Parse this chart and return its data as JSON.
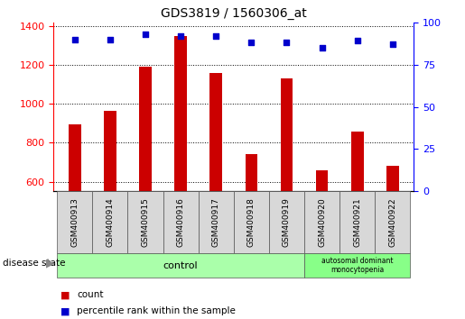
{
  "title": "GDS3819 / 1560306_at",
  "samples": [
    "GSM400913",
    "GSM400914",
    "GSM400915",
    "GSM400916",
    "GSM400917",
    "GSM400918",
    "GSM400919",
    "GSM400920",
    "GSM400921",
    "GSM400922"
  ],
  "counts": [
    893,
    963,
    1190,
    1350,
    1160,
    740,
    1130,
    660,
    860,
    680
  ],
  "percentile_ranks": [
    90,
    90,
    93,
    92,
    92,
    88,
    88,
    85,
    89,
    87
  ],
  "ylim_left": [
    550,
    1420
  ],
  "ylim_right": [
    0,
    100
  ],
  "yticks_left": [
    600,
    800,
    1000,
    1200,
    1400
  ],
  "yticks_right": [
    0,
    25,
    50,
    75,
    100
  ],
  "bar_color": "#cc0000",
  "scatter_color": "#0000cc",
  "control_color": "#aaffaa",
  "disease_color": "#88ff88",
  "label_bg_color": "#d8d8d8",
  "n_control": 7,
  "n_disease": 3,
  "group_labels": [
    "control",
    "autosomal dominant\nmonocytopenia"
  ],
  "legend_labels": [
    "count",
    "percentile rank within the sample"
  ],
  "bar_width": 0.35
}
